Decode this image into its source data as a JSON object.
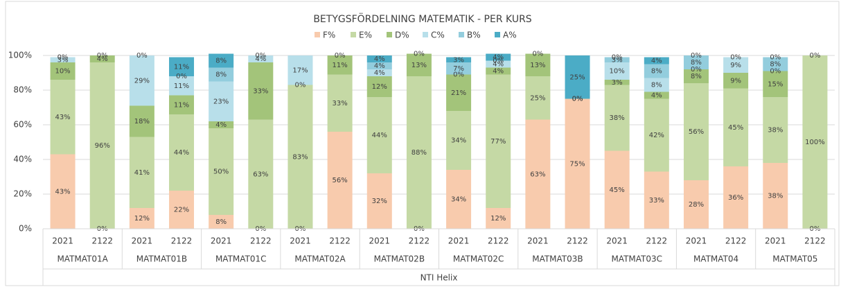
{
  "chart_data": {
    "type": "stacked_bar",
    "title": "BETYGSFÖRDELNING MATEMATIK - PER KURS",
    "categories": [
      "2021",
      "2122",
      "2021",
      "2122",
      "2021",
      "2122",
      "2021",
      "2122",
      "2021",
      "2122",
      "2021",
      "2122",
      "2021",
      "2122",
      "2021",
      "2122",
      "2021",
      "2122",
      "2021",
      "2122"
    ],
    "groups": [
      "MATMAT01A",
      "MATMAT01B",
      "MATMAT01C",
      "MATMAT02A",
      "MATMAT02B",
      "MATMAT02C",
      "MATMAT03B",
      "MATMAT03C",
      "MATMAT04",
      "MATMAT05"
    ],
    "group_label": "NTI Helix",
    "ylim": [
      0,
      100
    ],
    "yticks": [
      {
        "value": 0,
        "label": "0%"
      },
      {
        "value": 20,
        "label": "20%"
      },
      {
        "value": 40,
        "label": "40%"
      },
      {
        "value": 60,
        "label": "60%"
      },
      {
        "value": 80,
        "label": "80%"
      },
      {
        "value": 100,
        "label": "100%"
      }
    ],
    "grid": true,
    "legend": "top",
    "series": [
      {
        "name": "F%",
        "color": "#f8cbad",
        "values": [
          43,
          0,
          12,
          22,
          8,
          0,
          0,
          56,
          32,
          0,
          34,
          12,
          63,
          75,
          45,
          33,
          28,
          36,
          38,
          0
        ],
        "value_labels": [
          "43%",
          "0%",
          "12%",
          "22%",
          "8%",
          "0%",
          "0%",
          "56%",
          "32%",
          "0%",
          "34%",
          "12%",
          "63%",
          "75%",
          "45%",
          "33%",
          "28%",
          "36%",
          "38%",
          "0%"
        ]
      },
      {
        "name": "E%",
        "color": "#c5d9a5",
        "values": [
          43,
          96,
          41,
          44,
          50,
          63,
          83,
          33,
          44,
          88,
          34,
          77,
          25,
          0,
          38,
          42,
          56,
          45,
          38,
          100
        ],
        "value_labels": [
          "43%",
          "96%",
          "41%",
          "44%",
          "50%",
          "63%",
          "83%",
          "33%",
          "44%",
          "88%",
          "34%",
          "77%",
          "25%",
          "0%",
          "38%",
          "42%",
          "56%",
          "45%",
          "38%",
          "100%"
        ]
      },
      {
        "name": "D%",
        "color": "#a3c47a",
        "values": [
          10,
          4,
          18,
          11,
          4,
          33,
          0,
          11,
          12,
          13,
          21,
          4,
          13,
          0,
          3,
          4,
          8,
          9,
          15,
          0
        ],
        "value_labels": [
          "10%",
          "4%",
          "18%",
          "11%",
          "4%",
          "33%",
          "0%",
          "11%",
          "12%",
          "13%",
          "21%",
          "4%",
          "13%",
          "0%",
          "3%",
          "4%",
          "8%",
          "9%",
          "15%",
          null
        ]
      },
      {
        "name": "C%",
        "color": "#b8dfea",
        "values": [
          3,
          0,
          29,
          11,
          23,
          4,
          17,
          0,
          4,
          0,
          0,
          4,
          0,
          0,
          10,
          8,
          0,
          9,
          0,
          0
        ],
        "value_labels": [
          "3%",
          null,
          "29%",
          "11%",
          "23%",
          "4%",
          "17%",
          null,
          "4%",
          null,
          "0%",
          "4%",
          null,
          null,
          "10%",
          "8%",
          "0%",
          "9%",
          "0%",
          null
        ]
      },
      {
        "name": "B%",
        "color": "#93cddd",
        "values": [
          0,
          0,
          0,
          0,
          8,
          0,
          0,
          0,
          4,
          0,
          7,
          0,
          0,
          0,
          3,
          8,
          8,
          0,
          8,
          0
        ],
        "value_labels": [
          null,
          null,
          null,
          "0%",
          "8%",
          null,
          null,
          null,
          "4%",
          null,
          "7%",
          "0%",
          null,
          null,
          "3%",
          "8%",
          "8%",
          null,
          "8%",
          null
        ]
      },
      {
        "name": "A%",
        "color": "#4bacc6",
        "values": [
          0,
          0,
          0,
          11,
          8,
          0,
          0,
          0,
          4,
          0,
          3,
          4,
          0,
          25,
          0,
          4,
          0,
          0,
          0,
          0
        ],
        "value_labels": [
          "0%",
          "0%",
          "0%",
          "11%",
          "8%",
          "0%",
          null,
          "0%",
          "4%",
          "0%",
          "3%",
          "4%",
          "0%",
          "25%",
          "0%",
          "4%",
          "0%",
          "0%",
          "0%",
          "0%"
        ]
      }
    ]
  }
}
